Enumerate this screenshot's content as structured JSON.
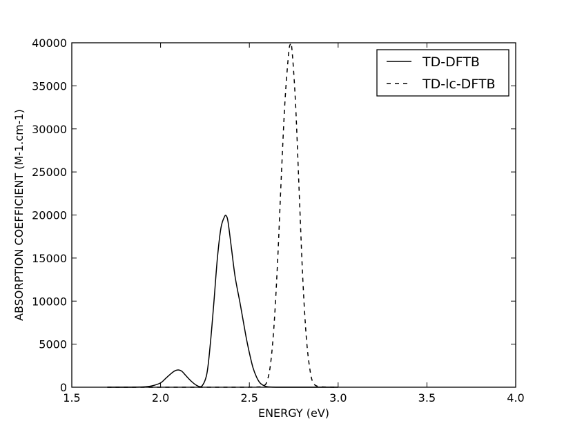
{
  "chart_data": {
    "type": "line",
    "title": "",
    "xlabel": "ENERGY (eV)",
    "ylabel": "ABSORPTION COEFFICIENT (M-1.cm-1)",
    "xlim": [
      1.5,
      4.0
    ],
    "ylim": [
      0,
      40000
    ],
    "xticks": [
      "1.5",
      "2.0",
      "2.5",
      "3.0",
      "3.5",
      "4.0"
    ],
    "yticks": [
      "0",
      "5000",
      "10000",
      "15000",
      "20000",
      "25000",
      "30000",
      "35000",
      "40000"
    ],
    "grid": false,
    "legend_position": "top-right",
    "series": [
      {
        "name": "TD-DFTB",
        "style": "solid",
        "color": "#000000",
        "x": [
          1.7,
          1.8,
          1.9,
          1.95,
          2.0,
          2.03,
          2.06,
          2.08,
          2.1,
          2.12,
          2.14,
          2.17,
          2.2,
          2.23,
          2.26,
          2.28,
          2.3,
          2.32,
          2.34,
          2.36,
          2.37,
          2.38,
          2.4,
          2.42,
          2.45,
          2.48,
          2.5,
          2.52,
          2.54,
          2.56,
          2.58,
          2.6,
          2.63,
          2.7,
          2.8,
          3.0
        ],
        "y": [
          0,
          0,
          30,
          150,
          500,
          1050,
          1600,
          1900,
          2000,
          1850,
          1400,
          750,
          250,
          80,
          1500,
          5000,
          9800,
          15000,
          18500,
          19800,
          19900,
          19200,
          16000,
          12800,
          9500,
          6000,
          4000,
          2300,
          1200,
          500,
          200,
          60,
          10,
          0,
          0,
          0
        ]
      },
      {
        "name": "TD-lc-DFTB",
        "style": "dashed",
        "color": "#000000",
        "x": [
          1.7,
          2.4,
          2.55,
          2.58,
          2.6,
          2.62,
          2.64,
          2.66,
          2.68,
          2.7,
          2.72,
          2.73,
          2.74,
          2.76,
          2.78,
          2.8,
          2.82,
          2.84,
          2.86,
          2.9,
          3.0
        ],
        "y": [
          0,
          0,
          30,
          150,
          700,
          2800,
          7500,
          15000,
          24500,
          33000,
          38500,
          39800,
          39200,
          33000,
          23000,
          13000,
          6000,
          2200,
          500,
          50,
          0
        ]
      }
    ]
  }
}
